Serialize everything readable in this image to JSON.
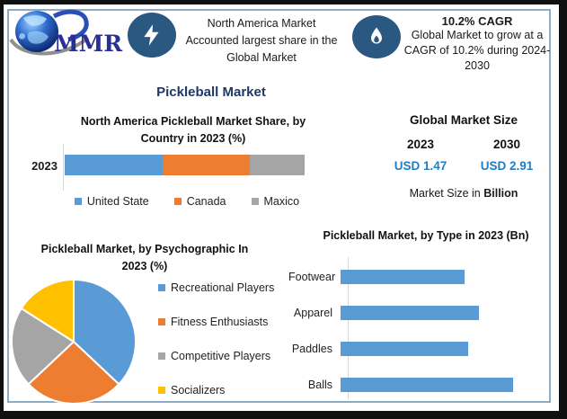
{
  "page_title": "Pickleball Market",
  "logo": {
    "text": "MMR"
  },
  "header": {
    "left_banner": {
      "icon": "lightning-bolt-icon",
      "lines": [
        "North America Market",
        "Accounted largest share in the",
        "Global Market"
      ]
    },
    "right_banner": {
      "icon": "flame-icon",
      "title": "10.2% CAGR",
      "lines": [
        "Global Market to grow at a",
        "CAGR of 10.2% during 2024-",
        "2030"
      ]
    }
  },
  "market_size": {
    "title": "Global Market Size",
    "columns": [
      {
        "year": "2023",
        "value": "USD 1.47"
      },
      {
        "year": "2030",
        "value": "USD 2.91"
      }
    ],
    "footnote_text": "Market Size in ",
    "footnote_bold": "Billion",
    "value_color": "#1F7EC2"
  },
  "colors": {
    "accent_navy": "#1F3864",
    "badge_blue": "#2A5881",
    "chart_blue": "#5B9BD5",
    "chart_orange": "#ED7D31",
    "chart_gray": "#A5A5A5",
    "chart_yellow": "#FFC000",
    "usd_blue": "#1F7EC2",
    "inner_border": "#8FABC4"
  },
  "chart_data": [
    {
      "type": "bar",
      "subtype": "stacked-horizontal-100pct",
      "title": "North America Pickleball Market Share, by Country in 2023 (%)",
      "title_lines": [
        "North America Pickleball Market Share, by",
        "Country in 2023 (%)"
      ],
      "categories": [
        "2023"
      ],
      "series": [
        {
          "name": "United State",
          "value": 41,
          "color": "#5B9BD5"
        },
        {
          "name": "Canada",
          "value": 36,
          "color": "#ED7D31"
        },
        {
          "name": "Maxico",
          "value": 23,
          "color": "#A5A5A5"
        }
      ],
      "unit": "%",
      "legend_position": "bottom",
      "data_labels_shown": false,
      "note": "segment percentages estimated from segment widths; no data labels shown"
    },
    {
      "type": "pie",
      "title": "Pickleball Market, by Psychographic In 2023 (%)",
      "title_lines": [
        "Pickleball Market, by Psychographic In",
        "2023 (%)"
      ],
      "slices": [
        {
          "label": "Recreational Players",
          "value": 37,
          "color": "#5B9BD5"
        },
        {
          "label": "Fitness Enthusiasts",
          "value": 26,
          "color": "#ED7D31"
        },
        {
          "label": "Competitive Players",
          "value": 21,
          "color": "#A5A5A5"
        },
        {
          "label": "Socializers",
          "value": 16,
          "color": "#FFC000"
        }
      ],
      "start_angle_deg": 0,
      "direction": "clockwise",
      "legend_position": "right",
      "note": "slice percentages estimated from arc angles; no data labels shown"
    },
    {
      "type": "bar",
      "subtype": "horizontal",
      "title": "Pickleball Market, by Type in 2023 (Bn)",
      "categories": [
        "Footwear",
        "Apparel",
        "Paddles",
        "Balls"
      ],
      "values": [
        0.33,
        0.37,
        0.34,
        0.46
      ],
      "xlim": [
        0,
        0.46
      ],
      "bar_color": "#5B9BD5",
      "axis_labels_shown": false,
      "note": "values estimated from relative bar lengths (72%, 81%, 74%, 100% of longest bar); no axis ticks shown"
    }
  ]
}
